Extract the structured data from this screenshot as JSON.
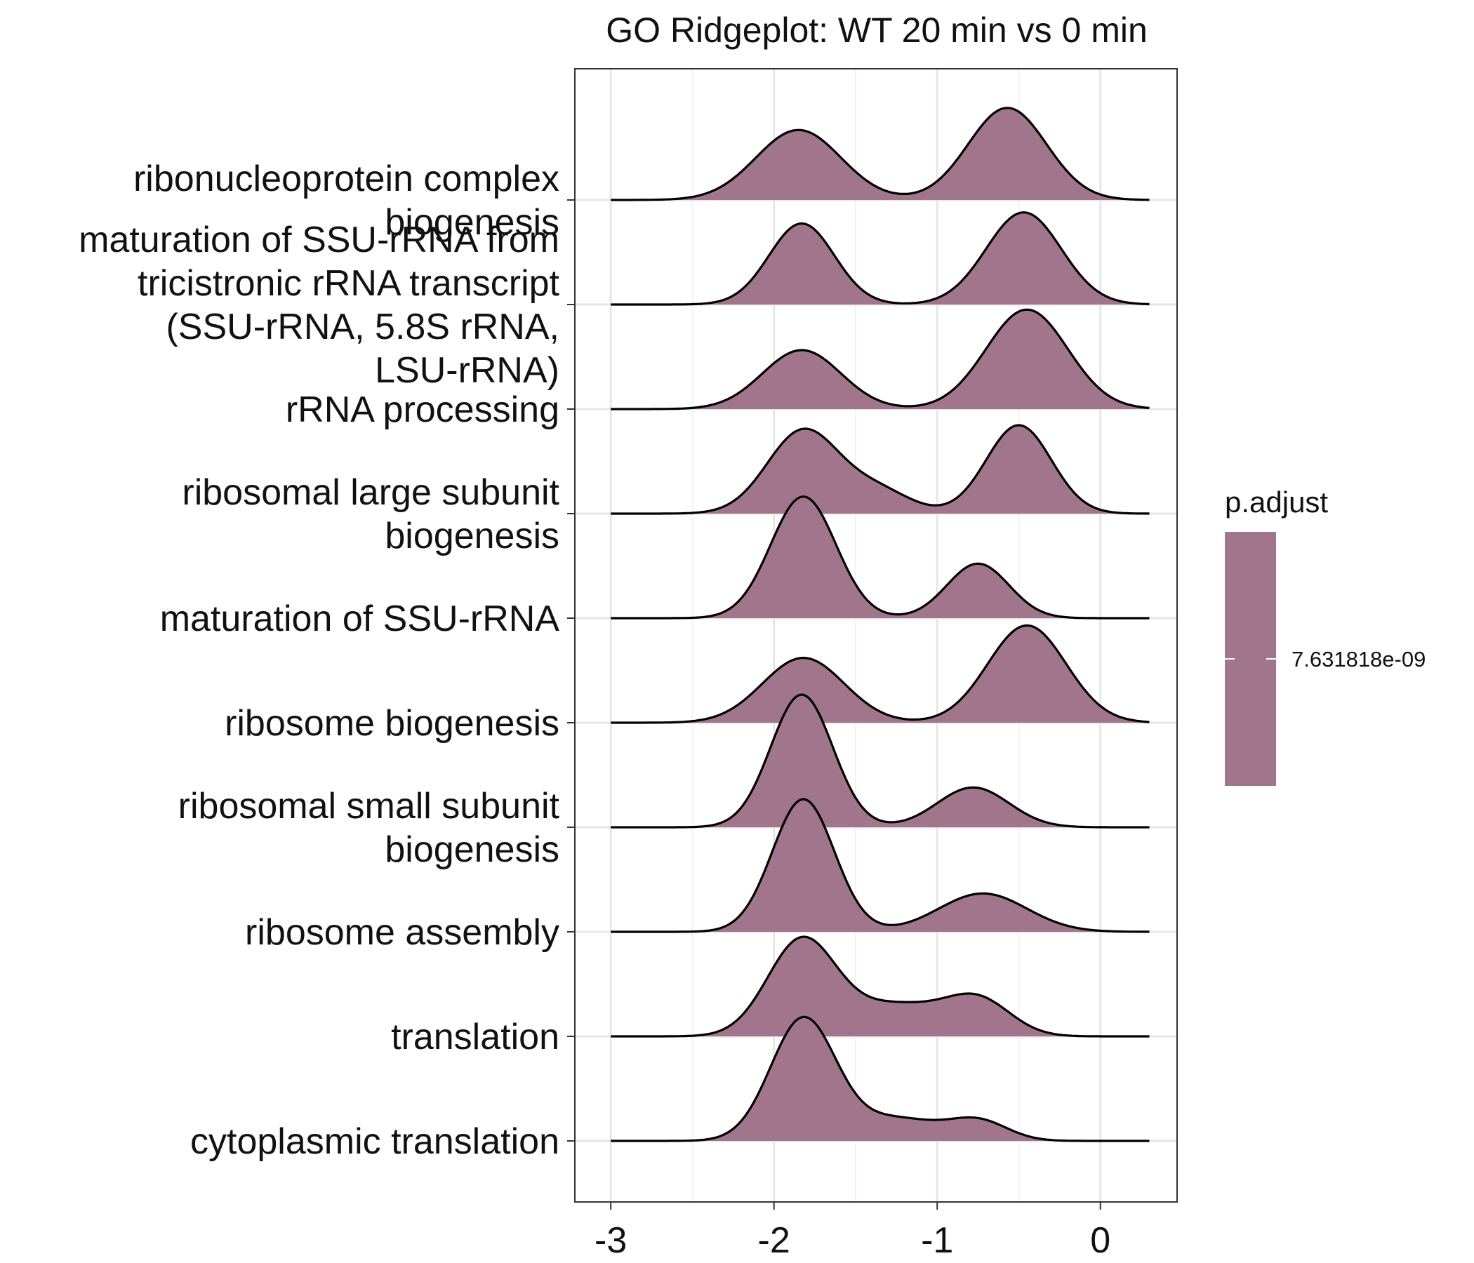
{
  "chart_data": {
    "type": "ridgeline",
    "title": "GO Ridgeplot: WT 20 min vs 0 min",
    "xlabel": "",
    "ylabel": "",
    "xlim": [
      -3.22,
      0.47
    ],
    "x_ticks": [
      -3,
      -2,
      -1,
      0
    ],
    "x_tick_labels": [
      "-3",
      "-2",
      "-1",
      "0"
    ],
    "x_range": [
      -3.0,
      0.3
    ],
    "grid": true,
    "fill_color": "#A1768D",
    "legend": {
      "title": "p.adjust",
      "position": "right",
      "value_label": "7.631818e-09"
    },
    "series": [
      {
        "name": "ribonucleoprotein complex biogenesis",
        "label_lines": [
          "ribonucleoprotein complex",
          "biogenesis"
        ],
        "peaks": [
          {
            "x": -1.85,
            "sd": 0.26,
            "h": 0.95
          },
          {
            "x": -0.57,
            "sd": 0.24,
            "h": 1.25
          }
        ]
      },
      {
        "name": "maturation of SSU-rRNA from tricistronic rRNA transcript (SSU-rRNA, 5.8S rRNA, LSU-rRNA)",
        "label_lines": [
          "maturation of SSU-rRNA from",
          "tricistronic rRNA transcript",
          "(SSU-rRNA, 5.8S rRNA,",
          "LSU-rRNA)"
        ],
        "peaks": [
          {
            "x": -1.83,
            "sd": 0.2,
            "h": 1.1
          },
          {
            "x": -0.47,
            "sd": 0.23,
            "h": 1.25
          }
        ]
      },
      {
        "name": "rRNA processing",
        "label_lines": [
          "rRNA processing"
        ],
        "peaks": [
          {
            "x": -1.83,
            "sd": 0.24,
            "h": 0.8
          },
          {
            "x": -0.45,
            "sd": 0.25,
            "h": 1.35
          }
        ]
      },
      {
        "name": "ribosomal large subunit biogenesis",
        "label_lines": [
          "ribosomal large subunit",
          "biogenesis"
        ],
        "peaks": [
          {
            "x": -1.82,
            "sd": 0.22,
            "h": 1.13
          },
          {
            "x": -1.36,
            "sd": 0.2,
            "h": 0.3
          },
          {
            "x": -0.5,
            "sd": 0.2,
            "h": 1.2
          }
        ]
      },
      {
        "name": "maturation of SSU-rRNA",
        "label_lines": [
          "maturation of SSU-rRNA"
        ],
        "peaks": [
          {
            "x": -1.82,
            "sd": 0.2,
            "h": 1.65
          },
          {
            "x": -0.75,
            "sd": 0.19,
            "h": 0.74
          }
        ]
      },
      {
        "name": "ribosome biogenesis",
        "label_lines": [
          "ribosome biogenesis"
        ],
        "peaks": [
          {
            "x": -1.82,
            "sd": 0.25,
            "h": 0.88
          },
          {
            "x": -0.45,
            "sd": 0.24,
            "h": 1.32
          }
        ]
      },
      {
        "name": "ribosomal small subunit biogenesis",
        "label_lines": [
          "ribosomal small subunit",
          "biogenesis"
        ],
        "peaks": [
          {
            "x": -1.83,
            "sd": 0.19,
            "h": 1.8
          },
          {
            "x": -0.78,
            "sd": 0.22,
            "h": 0.54
          }
        ]
      },
      {
        "name": "ribosome assembly",
        "label_lines": [
          "ribosome assembly"
        ],
        "peaks": [
          {
            "x": -1.82,
            "sd": 0.19,
            "h": 1.8
          },
          {
            "x": -0.72,
            "sd": 0.27,
            "h": 0.52
          }
        ]
      },
      {
        "name": "translation",
        "label_lines": [
          "translation"
        ],
        "peaks": [
          {
            "x": -1.83,
            "sd": 0.21,
            "h": 1.3
          },
          {
            "x": -1.25,
            "sd": 0.28,
            "h": 0.42
          },
          {
            "x": -0.75,
            "sd": 0.2,
            "h": 0.48
          }
        ]
      },
      {
        "name": "cytoplasmic translation",
        "label_lines": [
          "cytoplasmic translation"
        ],
        "peaks": [
          {
            "x": -1.82,
            "sd": 0.2,
            "h": 1.66
          },
          {
            "x": -1.25,
            "sd": 0.25,
            "h": 0.3
          },
          {
            "x": -0.75,
            "sd": 0.18,
            "h": 0.27
          }
        ]
      }
    ]
  }
}
